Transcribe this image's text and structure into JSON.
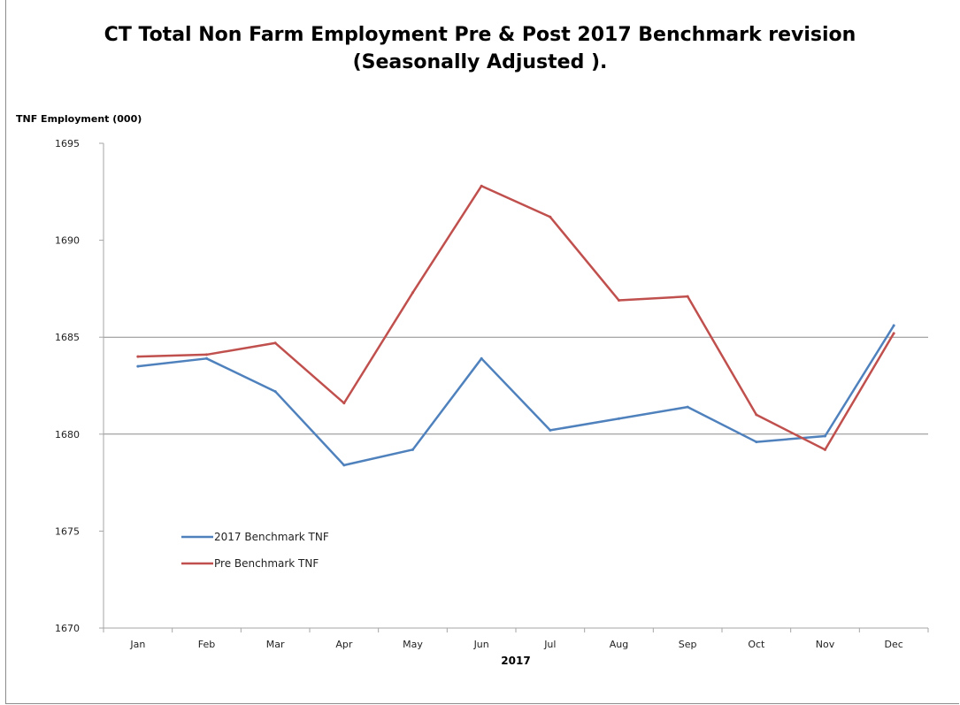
{
  "chart_data": {
    "type": "line",
    "title_line1": "CT Total Non Farm Employment Pre & Post 2017 Benchmark revision",
    "title_line2": "(Seasonally Adjusted ).",
    "ylabel": "TNF Employment (000)",
    "xlabel": "2017",
    "categories": [
      "Jan",
      "Feb",
      "Mar",
      "Apr",
      "May",
      "Jun",
      "Jul",
      "Aug",
      "Sep",
      "Oct",
      "Nov",
      "Dec"
    ],
    "ylim": [
      1670,
      1695
    ],
    "yticks": [
      "1670",
      "1675",
      "1680",
      "1685",
      "1690",
      "1695"
    ],
    "gridlines": [
      1680,
      1685
    ],
    "legend_position": "bottom-left",
    "series": [
      {
        "name": "2017 Benchmark TNF",
        "color": "#4f81bd",
        "values": [
          1683.5,
          1683.9,
          1682.2,
          1678.4,
          1679.2,
          1683.9,
          1680.2,
          1680.8,
          1681.4,
          1679.6,
          1679.9,
          1685.6
        ]
      },
      {
        "name": "Pre Benchmark TNF",
        "color": "#c0504d",
        "values": [
          1684.0,
          1684.1,
          1684.7,
          1681.6,
          1687.3,
          1692.8,
          1691.2,
          1686.9,
          1687.1,
          1681.0,
          1679.2,
          1685.2
        ]
      }
    ]
  }
}
